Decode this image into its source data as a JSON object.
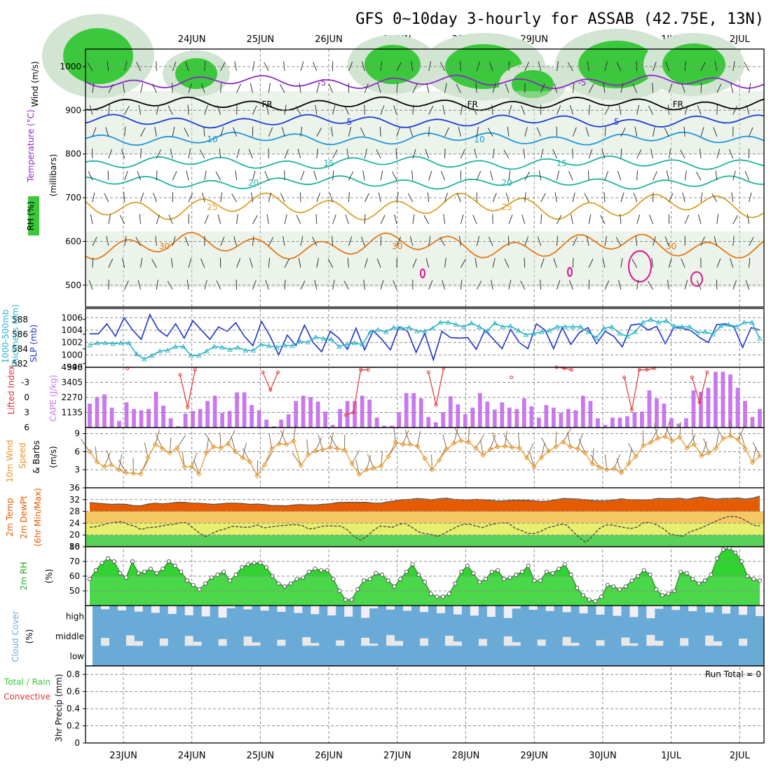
{
  "title": "GFS 0~10day 3-hourly for ASSAB (42.75E, 13N)",
  "dates": [
    "23JUN",
    "24JUN",
    "25JUN",
    "26JUN",
    "27JUN",
    "28JUN",
    "29JUN",
    "30JUN",
    "1JUL",
    "2JUL"
  ],
  "colors": {
    "rh": "#3cc83c",
    "rh_light": "#d2e4d2",
    "temp_purple": "#8c28c8",
    "temp_blue": "#1e3cd2",
    "temp_cyan": "#1e96dc",
    "temp_teal": "#1eb4a0",
    "temp_orange": "#e67814",
    "temp_gold": "#dca028",
    "slp": "#1e32c8",
    "thickness": "#28b4c8",
    "cape": "#c878f0",
    "li": "#e63232",
    "wind": "#e69628",
    "temp2m": "#e65a00",
    "cloud": "#6aaad6",
    "precip_green": "#3cc83c",
    "precip_red": "#e63232"
  },
  "chart_data": [
    {
      "type": "heatmap",
      "id": "upper_air",
      "ylabel_parts": [
        "Wind (m/s)",
        "Temperature (°C)",
        "(millibars)",
        "RH (%)"
      ],
      "yticks": [
        500,
        600,
        700,
        800,
        900,
        1000
      ],
      "ylim": [
        450,
        1040
      ],
      "isotherms": [
        {
          "label": "-5",
          "level": 525,
          "color": "#8c28c8",
          "labels_at": [
            2.9,
            6.7
          ]
        },
        {
          "label": "FR",
          "level": 575,
          "color": "#000000",
          "labels_at": [
            2.1,
            5.1,
            8.1
          ]
        },
        {
          "label": "5",
          "level": 615,
          "color": "#1e3cd2",
          "labels_at": [
            3.3,
            7.2
          ]
        },
        {
          "label": "10",
          "level": 655,
          "color": "#1e96dc",
          "labels_at": [
            1.3,
            5.2
          ]
        },
        {
          "label": "15",
          "level": 710,
          "color": "#1eb4a0",
          "labels_at": [
            3.0,
            6.4
          ]
        },
        {
          "label": "20",
          "level": 755,
          "color": "#1eb4a0",
          "labels_at": [
            1.9,
            5.6
          ]
        },
        {
          "label": "25",
          "level": 810,
          "color": "#dca028",
          "labels_at": [
            1.3,
            5.6
          ]
        },
        {
          "label": "30",
          "level": 900,
          "color": "#e67814",
          "labels_at": [
            4.0,
            8.0,
            0.6
          ]
        }
      ]
    },
    {
      "type": "line",
      "id": "slp_thickness",
      "ylabel_parts": [
        "1000-500mb",
        "Thickness (dm)",
        "SLP (mb)"
      ],
      "yticks_left": [
        582,
        584,
        586,
        588
      ],
      "yticks_right": [
        998,
        1000,
        1002,
        1004,
        1006
      ],
      "ylim_left": [
        581.5,
        589.5
      ],
      "ylim_right": [
        998,
        1007.5
      ],
      "series": [
        {
          "name": "SLP",
          "axis": "right",
          "values": [
            1003.4,
            1003.4,
            1005,
            1003,
            1006,
            1004,
            1002.5,
            1006.5,
            1004,
            1003,
            1005,
            1002.7,
            1005.5,
            1004,
            1002.5,
            1004.5,
            1003.8,
            1005.2,
            1003,
            1001.5,
            1005.4,
            1003,
            1000,
            1003.2,
            1001.5,
            1004.8,
            1002,
            1000.5,
            1003.8,
            1002.7,
            1000.9,
            1004.3,
            1000.8,
            1003.9,
            1002.5,
            1000.8,
            1004.5,
            1003.8,
            1000.4,
            1003.5,
            999.2,
            1003.8,
            1002.8,
            1002.7,
            1002.8,
            1000.9,
            1004,
            1002.5,
            1001,
            1004.1,
            1002,
            1001,
            1005,
            1004,
            1001,
            1004.4,
            1001.7,
            1003.6,
            1004.4,
            1001.8,
            1003.8,
            1003,
            1001.3,
            1004.8,
            1005,
            1004,
            1004.6,
            1001.8,
            1004.4,
            1004.3,
            1003.9,
            1002.8,
            1002,
            1004.9,
            1005,
            1004.5,
            1001.2,
            1004.4,
            1004
          ]
        },
        {
          "name": "Thickness",
          "axis": "left",
          "values": [
            584.5,
            584.8,
            584.8,
            584.7,
            584.8,
            584.8,
            583.3,
            582.6,
            583.1,
            583.7,
            583.8,
            584.3,
            584.3,
            583.1,
            583.1,
            583.7,
            584.3,
            584.2,
            583.9,
            584.2,
            583.8,
            583.8,
            584.6,
            584.4,
            584.2,
            584.5,
            584.4,
            585,
            584.9,
            585.6,
            585.4,
            585.3,
            584.3,
            584.6,
            584.8,
            584.6,
            586.3,
            586.6,
            586.3,
            586.9,
            586.8,
            586.9,
            586.4,
            586.4,
            586.8,
            587.6,
            587.6,
            587.3,
            587,
            587.5,
            587,
            586.4,
            587.5,
            587,
            587.1,
            586.5,
            585.9,
            586.1,
            586.3,
            586.5,
            587,
            587,
            587,
            587,
            586.3,
            585.5,
            586.8,
            587,
            586.1,
            585.7,
            586.3,
            587.6,
            588,
            587.6,
            587.8,
            587.1,
            587,
            587,
            586.2,
            586.3,
            586,
            587.1,
            587.3,
            587,
            587.6,
            587.6,
            585.4
          ]
        }
      ]
    },
    {
      "type": "bar",
      "id": "cape_li",
      "ylabel_parts": [
        "Lifted Index",
        "CAPE (J/kg)"
      ],
      "yticks_left": [
        -3,
        0,
        3,
        6
      ],
      "yticks_right": [
        1135,
        2270,
        3405,
        4540
      ],
      "ylim_left": [
        -6,
        6
      ],
      "ylim_right": [
        0,
        4540
      ],
      "series": [
        {
          "name": "CAPE",
          "values": [
            1800,
            2300,
            2500,
            1500,
            500,
            1900,
            1400,
            1300,
            1400,
            2700,
            1650,
            700,
            100,
            1050,
            1250,
            1400,
            2000,
            2400,
            1100,
            1250,
            2650,
            2650,
            1700,
            1300,
            600,
            100,
            600,
            1000,
            2000,
            2400,
            2300,
            1950,
            1200,
            200,
            1400,
            2000,
            2000,
            2400,
            2100,
            750,
            150,
            150,
            1150,
            2600,
            2600,
            2200,
            800,
            400,
            1150,
            2350,
            1750,
            1000,
            1500,
            2600,
            1950,
            1350,
            1900,
            1500,
            1400,
            2200,
            1600,
            750,
            1700,
            1500,
            1100,
            1400,
            1300,
            2400,
            2000,
            700,
            200,
            750,
            750,
            850,
            1150,
            1200,
            2800,
            2200,
            1800,
            700,
            300,
            700,
            2800,
            2700,
            3000,
            4200,
            4200,
            4000,
            3000,
            2000,
            800,
            1400
          ]
        },
        {
          "name": "Lifted Index",
          "values": [
            6,
            6,
            6,
            6,
            6,
            -5.8,
            6,
            6,
            6,
            6,
            6,
            6,
            -4.5,
            2,
            -5.5,
            6,
            6,
            6,
            6,
            6,
            6,
            6,
            6,
            -5,
            -1.5,
            -5,
            6,
            6,
            6,
            6,
            6,
            6,
            6,
            6,
            3.5,
            3,
            -5.5,
            -5.5,
            6,
            6,
            6,
            6,
            6,
            6,
            6,
            -5,
            1.5,
            -5.8,
            6,
            6,
            6,
            6,
            6,
            6,
            6,
            6,
            -4,
            6,
            6,
            6,
            6,
            6,
            -6,
            -5.8,
            -5.5,
            6,
            6,
            6,
            6,
            6,
            6,
            -4,
            2.5,
            -5.5,
            -5.5,
            -5.8,
            6,
            6,
            6,
            6,
            -4,
            1,
            -5,
            6,
            6,
            6,
            6,
            6,
            6,
            6
          ]
        }
      ]
    },
    {
      "type": "line",
      "id": "wind10m",
      "ylabel_parts": [
        "10m Wind",
        "Speed",
        "& Barbs",
        "(m/s)"
      ],
      "yticks": [
        3,
        6,
        9
      ],
      "ylim": [
        0,
        10
      ],
      "series": [
        {
          "name": "Speed",
          "values": [
            6,
            4.3,
            3.5,
            3.8,
            3,
            2.5,
            2.4,
            2.3,
            5,
            7.2,
            6.5,
            5.8,
            6.6,
            3.5,
            3.5,
            2.3,
            5.8,
            6.8,
            6.6,
            7.3,
            6,
            5,
            4.3,
            2,
            3.8,
            6.5,
            7.3,
            7.2,
            7.8,
            3.7,
            5.5,
            6.1,
            6.3,
            6.7,
            6.5,
            6.3,
            4,
            2.2,
            3,
            3.3,
            3.6,
            5.2,
            7.6,
            7.2,
            7.2,
            6.9,
            4.9,
            3,
            4.6,
            6.4,
            7.4,
            7.8,
            7.6,
            6.6,
            5.4,
            6.4,
            6.8,
            6.9,
            6.7,
            6.6,
            5,
            3.5,
            5,
            6.1,
            6.8,
            7.6,
            6.8,
            6.5,
            5.8,
            4,
            3.4,
            3,
            3.2,
            2.5,
            4,
            5.2,
            7,
            7.5,
            8.2,
            8.5,
            7.8,
            8.4,
            6.6,
            7.2,
            5.3,
            5.8,
            6.6,
            8.2,
            8.6,
            8,
            6.5,
            4.2,
            5.3
          ]
        }
      ]
    },
    {
      "type": "area",
      "id": "temp2m",
      "ylabel_parts": [
        "2m Temp",
        "2m DewPt",
        "(6hr Min/Max)"
      ],
      "yticks": [
        16,
        20,
        24,
        28,
        32,
        36
      ],
      "ylim": [
        16,
        36
      ],
      "series": [
        {
          "name": "2m Temp",
          "values": [
            31,
            30.8,
            30.6,
            30.4,
            30.5,
            30.4,
            30,
            29.9,
            30.5,
            30.8,
            30.6,
            30.8,
            31.1,
            31.1,
            30.8,
            30.8,
            30.6,
            30.4,
            30.6,
            30.8,
            30.8,
            30.7,
            30.4,
            30.5,
            30.3,
            30,
            30,
            29.9,
            30.2,
            30.3,
            30.2,
            30.2,
            30.4,
            30.6,
            31,
            31.1,
            31.1,
            31.1,
            31.1,
            30.8,
            30.8,
            31.3,
            31.6,
            32,
            32.1,
            32.4,
            32.2,
            32,
            32.3,
            32.5,
            32.1,
            32,
            31.9,
            32.1,
            32,
            31.8,
            31.5,
            31.6,
            31.8,
            31.8,
            31.8,
            31.6,
            31.4,
            31.5,
            32,
            32.4,
            32.3,
            32.2,
            32,
            31.7,
            31.6,
            31.6,
            31.9,
            32.3,
            32,
            32,
            31.9,
            32,
            32.4,
            32.3,
            32.3,
            32.5,
            32.1,
            32.6,
            32.9,
            32.5,
            32.2,
            32.4,
            32.4,
            32.6,
            32.2,
            32.5,
            33.2
          ]
        },
        {
          "name": "2m DewPt",
          "values": [
            22.6,
            22.8,
            23.4,
            24,
            24.3,
            24.5,
            23.5,
            23,
            21.8,
            22.5,
            22.6,
            23,
            23.4,
            23.6,
            24.1,
            24.2,
            22.4,
            20.7,
            19.4,
            20.5,
            21.5,
            22,
            22.9,
            22.8,
            22.6,
            22.7,
            23.4,
            22.4,
            22.7,
            23,
            23.2,
            23.4,
            23.5,
            23.2,
            22,
            22.3,
            22.9,
            23.1,
            23,
            23,
            21.7,
            19.5,
            18.2,
            19.5,
            21.5,
            23,
            22.8,
            22.6,
            23.6,
            23.9,
            22.6,
            21.1,
            20.4,
            20.2,
            19.4,
            20.5,
            21.7,
            22.8,
            23.6,
            23.6,
            23,
            22.5,
            23.4,
            23.8,
            24.1,
            24,
            22.3,
            21.5,
            20.5,
            20.5,
            21.2,
            22.4,
            22.9,
            23.6,
            23.4,
            21.2,
            19,
            17.5,
            19.5,
            22,
            23.3,
            23.4,
            22.9,
            22.5,
            22.2,
            22.7,
            24.2,
            24.2,
            23.4,
            22.2,
            20.4,
            19.9,
            19.5,
            20.9,
            21.7,
            22.5,
            23.5,
            24.5,
            25.4,
            26.2,
            26.3,
            25.8,
            24.6,
            23.3,
            23.1
          ]
        }
      ]
    },
    {
      "type": "area",
      "id": "rh2m",
      "ylabel_parts": [
        "2m RH",
        "(%)"
      ],
      "yticks": [
        50,
        60,
        70,
        80
      ],
      "ylim": [
        40,
        80
      ],
      "series": [
        {
          "name": "2m RH",
          "values": [
            58,
            64,
            69,
            72,
            70,
            62,
            59,
            70,
            62,
            63,
            65,
            62,
            65,
            70,
            67,
            63,
            57,
            54,
            51,
            55,
            59,
            61,
            63,
            57,
            61,
            66,
            68,
            69,
            69,
            66,
            60,
            55,
            53,
            55,
            58,
            59,
            63,
            65,
            64,
            64,
            58,
            50,
            44,
            44,
            51,
            57,
            58,
            62,
            61,
            57,
            53,
            58,
            63,
            68,
            61,
            56,
            48,
            46,
            46,
            48,
            55,
            63,
            67,
            62,
            56,
            58,
            63,
            64,
            58,
            59,
            61,
            63,
            67,
            57,
            57,
            63,
            62,
            65,
            68,
            61,
            52,
            47,
            44,
            43,
            46,
            54,
            53,
            51,
            53,
            57,
            60,
            64,
            61,
            51,
            47,
            48,
            50,
            63,
            62,
            58,
            55,
            57,
            61,
            72,
            78,
            79,
            76,
            70,
            60,
            58,
            57
          ]
        }
      ]
    },
    {
      "type": "heatmap",
      "id": "cloud_cover",
      "ylabel_parts": [
        "Cloud Cover",
        "(%)"
      ],
      "levels": [
        "high",
        "middle",
        "low"
      ]
    },
    {
      "type": "bar",
      "id": "precip",
      "ylabel_parts": [
        "Total / Rain",
        "Convective",
        "3hr Precip (mm)"
      ],
      "yticks": [
        0,
        0.2,
        0.4,
        0.6,
        0.8
      ],
      "ylim": [
        0,
        0.9
      ],
      "run_total": "Run Total = 0",
      "series": [
        {
          "name": "3hr Precip",
          "values": []
        }
      ]
    }
  ]
}
